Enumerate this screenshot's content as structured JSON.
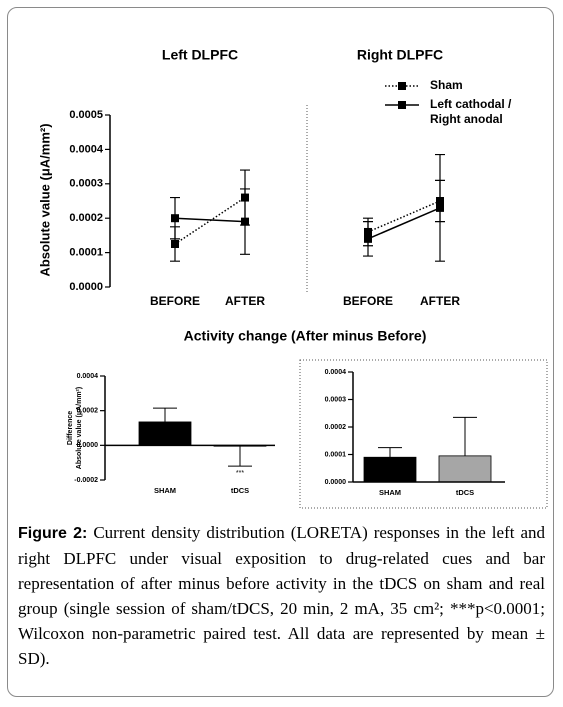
{
  "chart_data": [
    {
      "type": "line",
      "title": "Left DLPFC",
      "ylabel": "Absolute value (μA/mm²)",
      "categories": [
        "BEFORE",
        "AFTER"
      ],
      "series": [
        {
          "name": "Sham",
          "color": "#000000",
          "linestyle": "dotted",
          "values": [
            0.000125,
            0.00026
          ],
          "errors": [
            5e-05,
            8e-05
          ]
        },
        {
          "name": "Left cathodal / Right anodal",
          "color": "#000000",
          "linestyle": "solid",
          "values": [
            0.0002,
            0.00019
          ],
          "errors": [
            6e-05,
            9.5e-05
          ]
        }
      ],
      "ylim": [
        0,
        0.0005
      ],
      "yticks": [
        {
          "value": 0,
          "label": "0.0000"
        },
        {
          "value": 0.0001,
          "label": "0.0001"
        },
        {
          "value": 0.0002,
          "label": "0.0002"
        },
        {
          "value": 0.0003,
          "label": "0.0003"
        },
        {
          "value": 0.0004,
          "label": "0.0004"
        },
        {
          "value": 0.0005,
          "label": "0.0005"
        }
      ]
    },
    {
      "type": "line",
      "title": "Right DLPFC",
      "legend": "top-right",
      "categories": [
        "BEFORE",
        "AFTER"
      ],
      "series": [
        {
          "name": "Sham",
          "color": "#000000",
          "linestyle": "dotted",
          "values": [
            0.00016,
            0.00025
          ],
          "errors": [
            4e-05,
            6e-05
          ]
        },
        {
          "name": "Left cathodal / Right anodal",
          "color": "#000000",
          "linestyle": "solid",
          "values": [
            0.00014,
            0.00023
          ],
          "errors": [
            5e-05,
            0.000155
          ]
        }
      ],
      "ylim": [
        0,
        0.0005
      ]
    },
    {
      "type": "bar",
      "title": "Activity change (After minus Before)",
      "ylabel": [
        "Difference",
        "Absolute value (μA/mm²)"
      ],
      "categories": [
        "SHAM",
        "tDCS"
      ],
      "values": [
        0.000135,
        -5e-06
      ],
      "errors": [
        8e-05,
        0.000115
      ],
      "colors": [
        "#000000",
        "#ffffff"
      ],
      "annotation": "***",
      "ylim": [
        -0.0002,
        0.0004
      ],
      "yticks": [
        {
          "value": -0.0002,
          "label": "-0.0002"
        },
        {
          "value": 0,
          "label": "0.0000"
        },
        {
          "value": 0.0002,
          "label": "0.0002"
        },
        {
          "value": 0.0004,
          "label": "0.0004"
        }
      ]
    },
    {
      "type": "bar",
      "categories": [
        "SHAM",
        "tDCS"
      ],
      "values": [
        9e-05,
        9.5e-05
      ],
      "errors": [
        3.5e-05,
        0.00014
      ],
      "colors": [
        "#000000",
        "#a6a6a6"
      ],
      "ylim": [
        0,
        0.0004
      ],
      "yticks": [
        {
          "value": 0,
          "label": "0.0000"
        },
        {
          "value": 0.0001,
          "label": "0.0001"
        },
        {
          "value": 0.0002,
          "label": "0.0002"
        },
        {
          "value": 0.0003,
          "label": "0.0003"
        },
        {
          "value": 0.0004,
          "label": "0.0004"
        }
      ]
    }
  ],
  "caption": {
    "label": "Figure 2:",
    "text": "Current density distribution (LORETA) responses in the left and right DLPFC under visual exposition to drug-related cues and bar representation of after minus before activity in the tDCS on sham and real group (single session of sham/tDCS, 20 min, 2 mA, 35 cm²; ***p<0.0001; Wilcoxon non-parametric paired test. All data are represented by mean ± SD)."
  }
}
